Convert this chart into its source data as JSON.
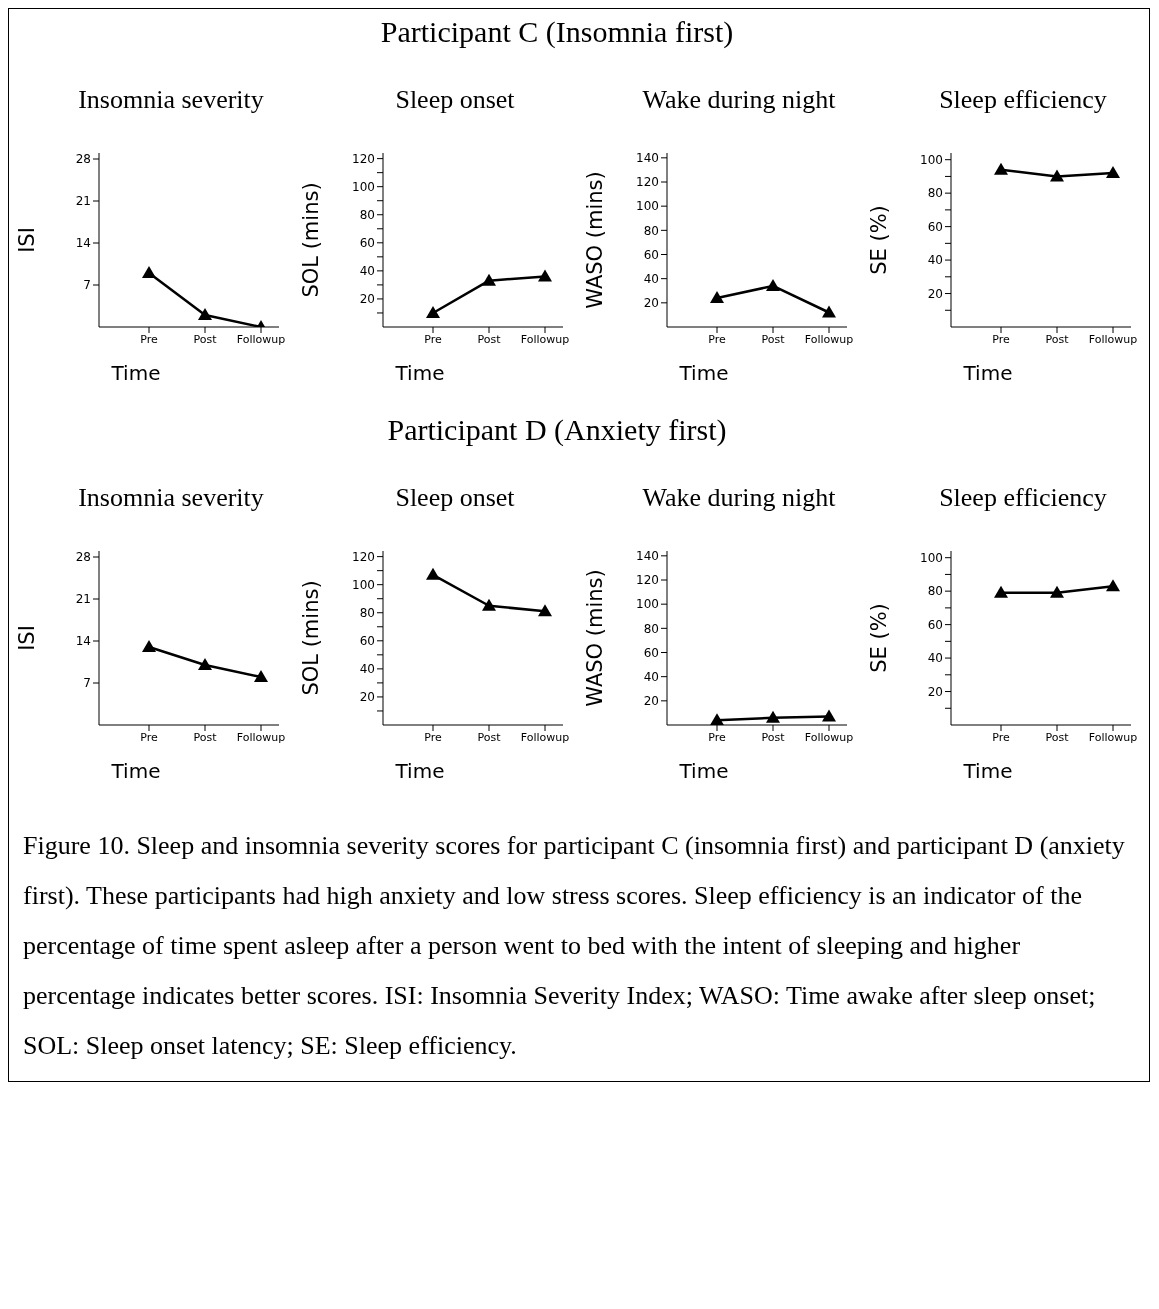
{
  "chart_data": [
    {
      "type": "line",
      "title": "Insomnia severity",
      "xlabel": "Time",
      "ylabel": "ISI",
      "categories": [
        "Pre",
        "Post",
        "Followup"
      ],
      "values": [
        9,
        2,
        0
      ],
      "color": "#000000",
      "marker": "triangle",
      "ylim": [
        0,
        29
      ],
      "yticks": [
        7,
        14,
        21,
        28
      ]
    },
    {
      "type": "line",
      "subtitle": "Participant C (Insomnia first)",
      "title": "Sleep onset",
      "xlabel": "Time",
      "ylabel": "SOL (mins)",
      "categories": [
        "Pre",
        "Post",
        "Followup"
      ],
      "values": [
        10,
        33,
        36
      ],
      "color": "#000000",
      "marker": "triangle",
      "ylim": [
        0,
        124
      ],
      "yticks": [
        {
          "value": 10,
          "label": null
        },
        20,
        {
          "value": 30,
          "label": null
        },
        40,
        {
          "value": 50,
          "label": null
        },
        60,
        {
          "value": 70,
          "label": null
        },
        80,
        {
          "value": 90,
          "label": null
        },
        100,
        {
          "value": 110,
          "label": null
        },
        120
      ]
    },
    {
      "type": "line",
      "title": "Wake during night",
      "xlabel": "Time",
      "ylabel": "WASO (mins)",
      "categories": [
        "Pre",
        "Post",
        "Followup"
      ],
      "values": [
        24,
        34,
        12
      ],
      "color": "#000000",
      "marker": "triangle",
      "ylim": [
        0,
        144
      ],
      "yticks": [
        20,
        40,
        60,
        80,
        100,
        120,
        140
      ]
    },
    {
      "type": "line",
      "title": "Sleep efficiency",
      "xlabel": "Time",
      "ylabel": "SE (%)",
      "categories": [
        "Pre",
        "Post",
        "Followup"
      ],
      "values": [
        94,
        90,
        92
      ],
      "color": "#000000",
      "marker": "triangle",
      "ylim": [
        0,
        104
      ],
      "yticks": [
        {
          "value": 10,
          "label": null
        },
        20,
        {
          "value": 30,
          "label": null
        },
        40,
        {
          "value": 50,
          "label": null
        },
        60,
        {
          "value": 70,
          "label": null
        },
        80,
        {
          "value": 90,
          "label": null
        },
        100
      ]
    },
    {
      "type": "line",
      "title": "Insomnia severity",
      "xlabel": "Time",
      "ylabel": "ISI",
      "categories": [
        "Pre",
        "Post",
        "Followup"
      ],
      "values": [
        13,
        10,
        8
      ],
      "color": "#000000",
      "marker": "triangle",
      "ylim": [
        0,
        29
      ],
      "yticks": [
        7,
        14,
        21,
        28
      ]
    },
    {
      "type": "line",
      "subtitle": "Participant D (Anxiety first)",
      "title": "Sleep onset",
      "xlabel": "Time",
      "ylabel": "SOL (mins)",
      "categories": [
        "Pre",
        "Post",
        "Followup"
      ],
      "values": [
        107,
        85,
        81
      ],
      "color": "#000000",
      "marker": "triangle",
      "ylim": [
        0,
        124
      ],
      "yticks": [
        {
          "value": 10,
          "label": null
        },
        20,
        {
          "value": 30,
          "label": null
        },
        40,
        {
          "value": 50,
          "label": null
        },
        60,
        {
          "value": 70,
          "label": null
        },
        80,
        {
          "value": 90,
          "label": null
        },
        100,
        {
          "value": 110,
          "label": null
        },
        120
      ]
    },
    {
      "type": "line",
      "title": "Wake during night",
      "xlabel": "Time",
      "ylabel": "WASO (mins)",
      "categories": [
        "Pre",
        "Post",
        "Followup"
      ],
      "values": [
        4,
        6,
        7
      ],
      "color": "#000000",
      "marker": "triangle",
      "ylim": [
        0,
        144
      ],
      "yticks": [
        20,
        40,
        60,
        80,
        100,
        120,
        140
      ]
    },
    {
      "type": "line",
      "title": "Sleep efficiency",
      "xlabel": "Time",
      "ylabel": "SE (%)",
      "categories": [
        "Pre",
        "Post",
        "Followup"
      ],
      "values": [
        79,
        79,
        83
      ],
      "color": "#000000",
      "marker": "triangle",
      "ylim": [
        0,
        104
      ],
      "yticks": [
        {
          "value": 10,
          "label": null
        },
        20,
        {
          "value": 30,
          "label": null
        },
        40,
        {
          "value": 50,
          "label": null
        },
        60,
        {
          "value": 70,
          "label": null
        },
        80,
        {
          "value": 90,
          "label": null
        },
        100
      ],
      "annotations": [
        "Figure 10. Sleep and insomnia severity scores for participant C (insomnia first) and participant D (anxiety first). These participants had high anxiety and low stress scores. Sleep efficiency is an indicator of the percentage of time spent asleep after a person went to bed with the intent of sleeping and higher percentage indicates better scores. ISI: Insomnia Severity Index; WASO: Time awake after sleep onset; SOL: Sleep onset latency; SE: Sleep efficiency."
      ]
    }
  ]
}
